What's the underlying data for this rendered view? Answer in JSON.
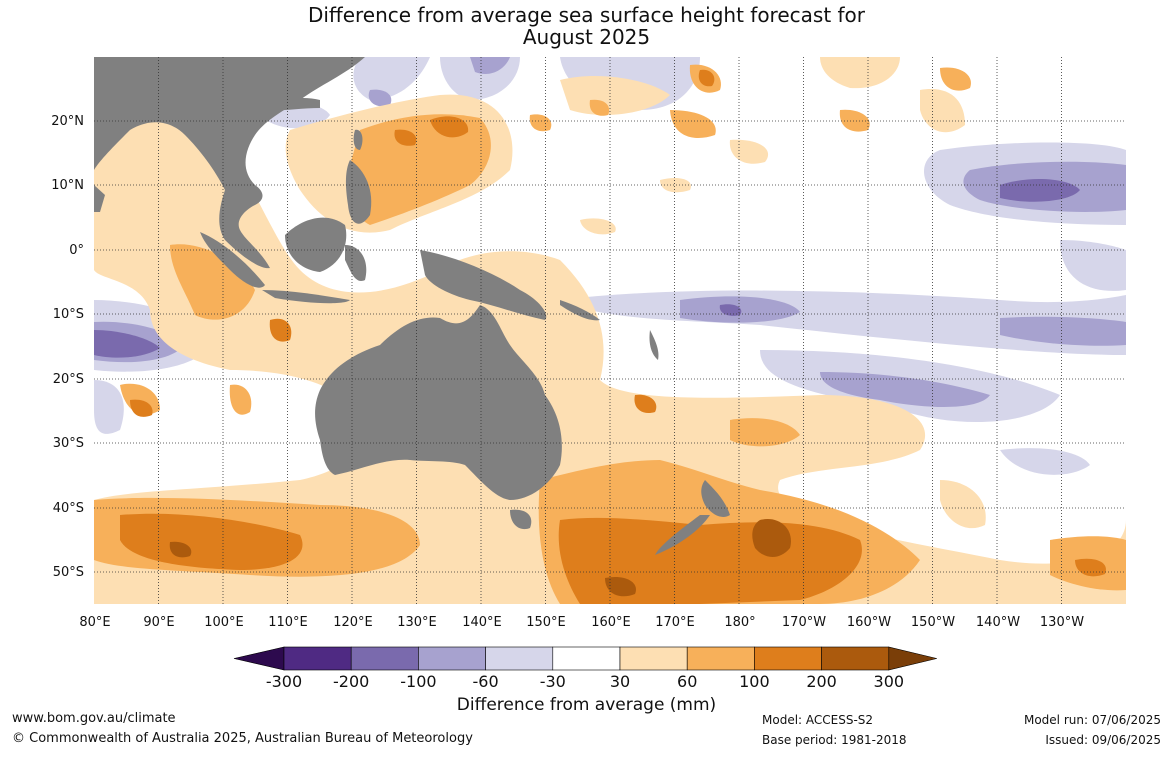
{
  "title_line1": "Difference from average sea surface height forecast for",
  "title_line2": "August 2025",
  "lat_labels": [
    "20°N",
    "10°N",
    "0°",
    "10°S",
    "20°S",
    "30°S",
    "40°S",
    "50°S"
  ],
  "lon_labels": [
    "80°E",
    "90°E",
    "100°E",
    "110°E",
    "120°E",
    "130°E",
    "140°E",
    "150°E",
    "160°E",
    "170°E",
    "180°",
    "170°W",
    "160°W",
    "150°W",
    "140°W",
    "130°W"
  ],
  "colorbar": {
    "ticks": [
      "-300",
      "-200",
      "-100",
      "-60",
      "-30",
      "30",
      "60",
      "100",
      "200",
      "300"
    ],
    "colors": [
      "#2d0a4e",
      "#4f2a83",
      "#7a6aad",
      "#a7a2cf",
      "#d6d6ea",
      "#ffffff",
      "#fddfb3",
      "#f7b05a",
      "#de7e1c",
      "#ab5a0d",
      "#7a3e08"
    ],
    "title": "Difference from average (mm)"
  },
  "colors": {
    "land": "#808080",
    "ocean": "#ffffff",
    "grid": "#333333"
  },
  "footer": {
    "website": "www.bom.gov.au/climate",
    "copyright": "© Commonwealth of Australia 2025, Australian Bureau of Meteorology",
    "model": "Model: ACCESS-S2",
    "base_period": "Base period: 1981-2018",
    "model_run": "Model run: 07/06/2025",
    "issued": "Issued: 09/06/2025"
  }
}
